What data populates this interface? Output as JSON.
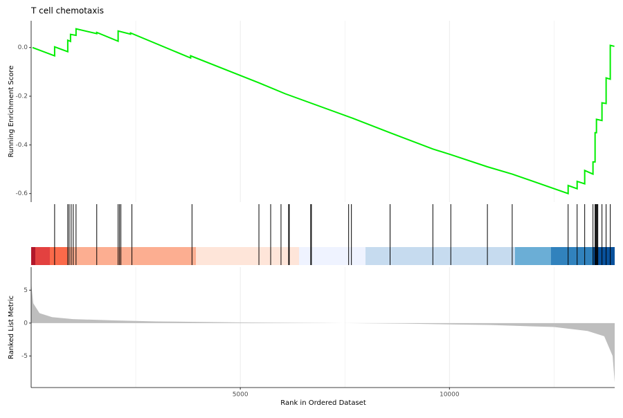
{
  "chart_data": [
    {
      "type": "line",
      "title": "T cell chemotaxis",
      "ylabel": "Running Enrichment Score",
      "xlim": [
        0,
        13950
      ],
      "ylim": [
        -0.635,
        0.11
      ],
      "yticks": [
        {
          "value": 0,
          "label": "0.0"
        },
        -0.2,
        -0.4,
        -0.6
      ],
      "x_minor_ticks": [
        2500,
        7500,
        12500
      ],
      "xticks": [
        5000,
        10000
      ],
      "series": [
        {
          "color": "#00ee00",
          "x": [
            33,
            561,
            561,
            875,
            875,
            941,
            941,
            1073,
            1073,
            1568,
            1568,
            2079,
            2079,
            2376,
            2376,
            3812,
            3812,
            5445,
            6075,
            7680,
            8580,
            9603,
            10032,
            10907,
            11500,
            12837,
            12837,
            13052,
            13052,
            13233,
            13233,
            13431,
            13431,
            13481,
            13481,
            13514,
            13514,
            13646,
            13646,
            13745,
            13745,
            13844,
            13844,
            13943
          ],
          "values": [
            0.0,
            -0.034,
            0.003,
            -0.017,
            0.03,
            0.025,
            0.054,
            0.05,
            0.077,
            0.057,
            0.062,
            0.026,
            0.068,
            0.055,
            0.06,
            -0.043,
            -0.034,
            -0.145,
            -0.19,
            -0.29,
            -0.35,
            -0.417,
            -0.44,
            -0.49,
            -0.52,
            -0.6,
            -0.567,
            -0.58,
            -0.55,
            -0.56,
            -0.505,
            -0.52,
            -0.47,
            -0.47,
            -0.35,
            -0.35,
            -0.295,
            -0.3,
            -0.227,
            -0.23,
            -0.125,
            -0.13,
            0.009,
            0.005
          ]
        }
      ]
    },
    {
      "type": "rug",
      "xlim": [
        0,
        13950
      ],
      "x": [
        561,
        875,
        908,
        957,
        1007,
        1073,
        1568,
        2079,
        2112,
        2145,
        2409,
        3845,
        5445,
        5726,
        5973,
        6155,
        6171,
        6683,
        6700,
        7590,
        7656,
        8580,
        9603,
        10032,
        10907,
        11500,
        12837,
        13052,
        13233,
        13431,
        13481,
        13497,
        13514,
        13530,
        13547,
        13646,
        13745,
        13844
      ]
    },
    {
      "type": "area",
      "ylabel": "Ranked List Metric",
      "xlabel": "Rank in Ordered Dataset",
      "xlim": [
        0,
        13950
      ],
      "ylim": [
        -9.8,
        8.5
      ],
      "yticks": [
        5,
        0,
        -5
      ],
      "x_minor_ticks": [
        2500,
        7500,
        12500
      ],
      "xticks": [
        5000,
        10000
      ],
      "color": "#bebebe",
      "x": [
        1,
        50,
        200,
        500,
        1000,
        2000,
        3000,
        5000,
        7000,
        9000,
        11000,
        12500,
        13300,
        13700,
        13900,
        13950
      ],
      "values": [
        6.0,
        3.0,
        1.5,
        0.9,
        0.6,
        0.4,
        0.25,
        0.1,
        0.02,
        -0.1,
        -0.3,
        -0.6,
        -1.2,
        -2.0,
        -5.0,
        -9.0
      ]
    }
  ]
}
